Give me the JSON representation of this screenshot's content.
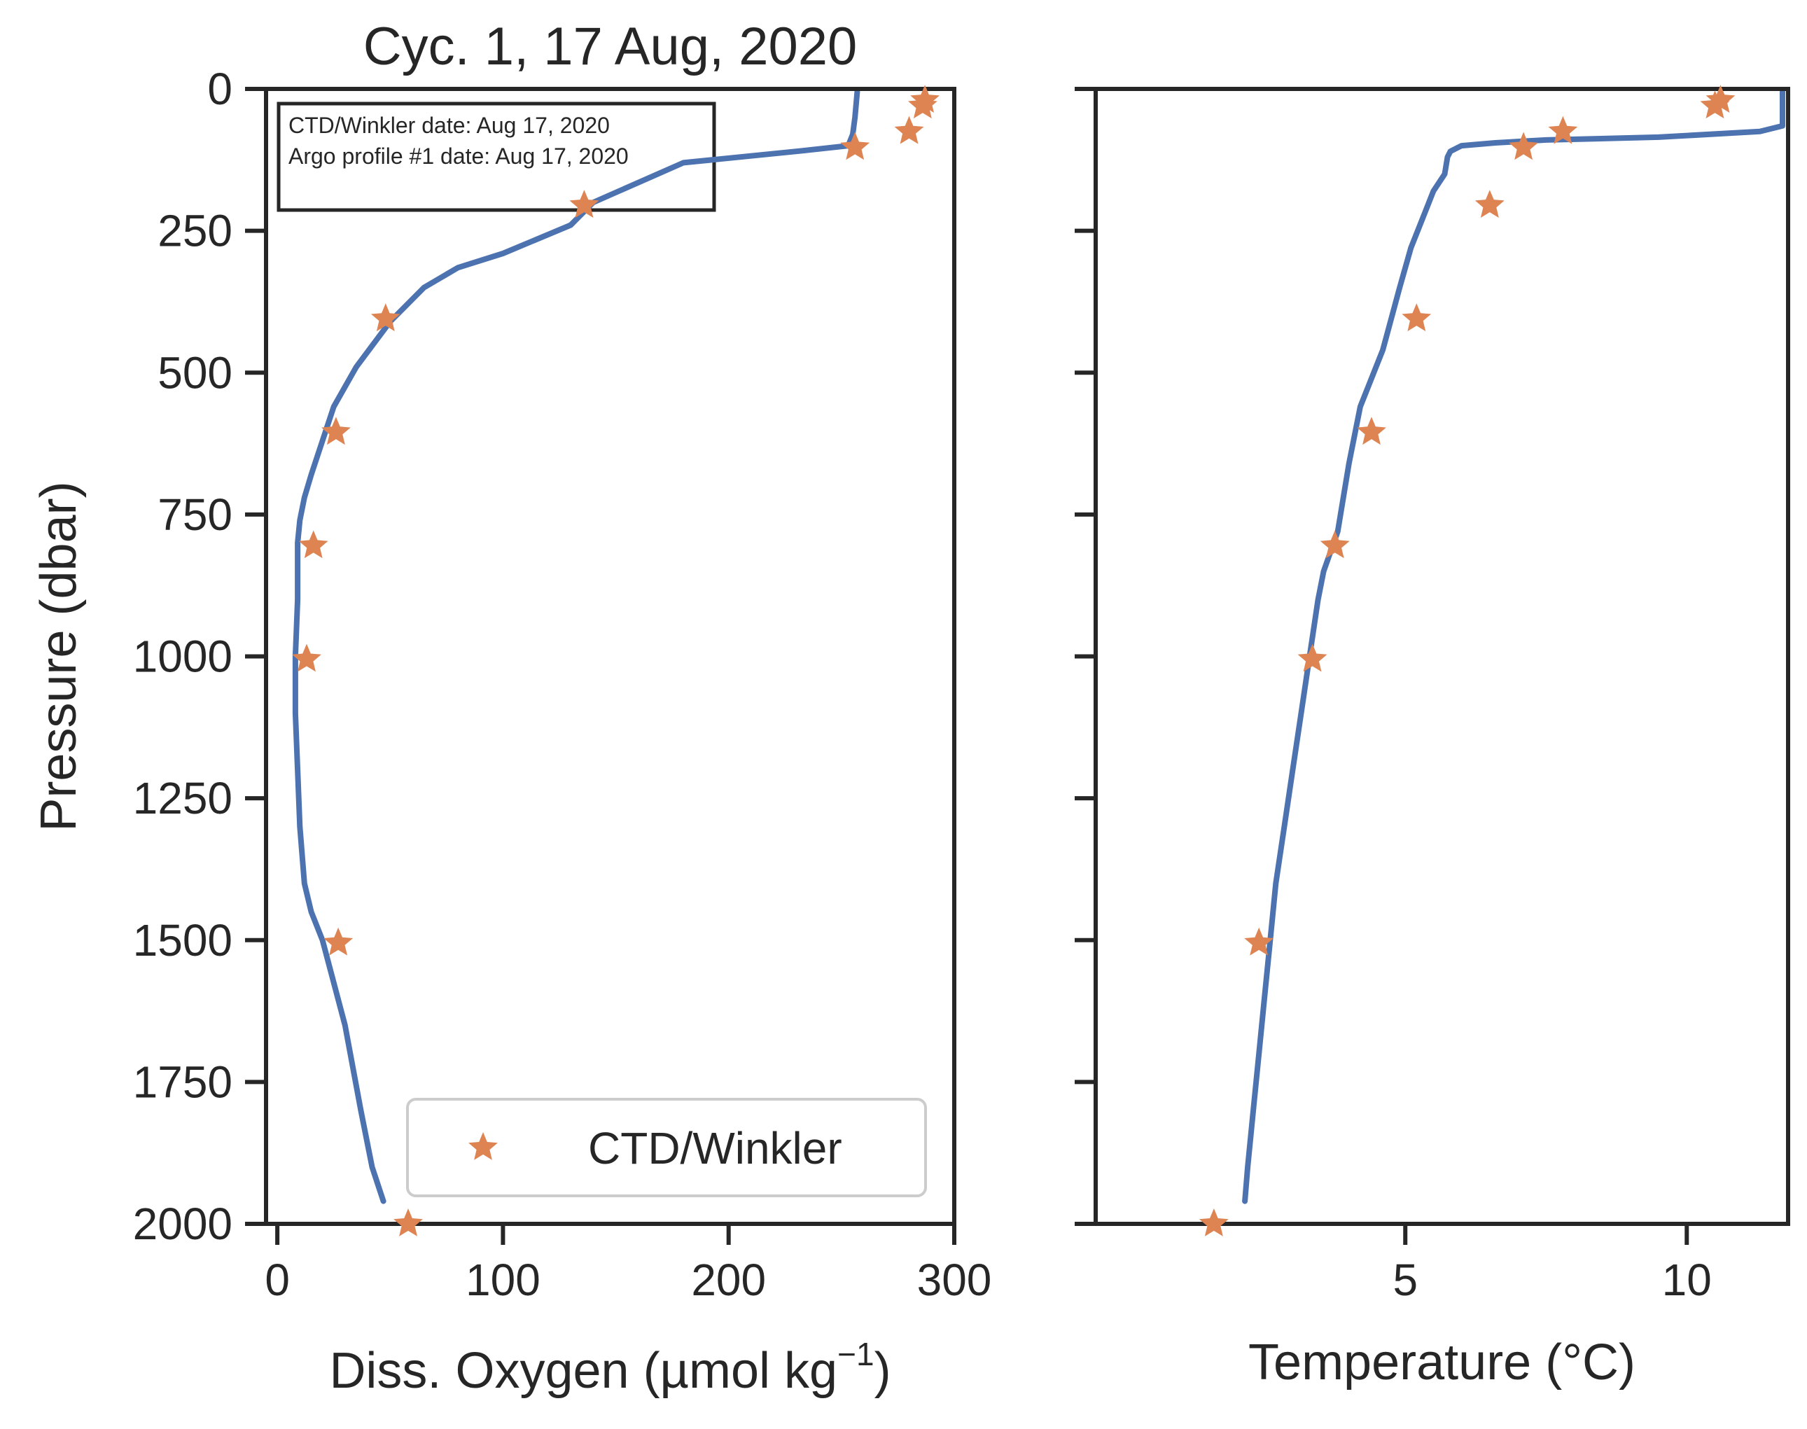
{
  "colors": {
    "profile_line": "#4c72b0",
    "winkler_marker": "#dd8452",
    "axes": "#262626"
  },
  "chart_data": [
    {
      "type": "line",
      "title": "Cyc. 1, 17 Aug, 2020",
      "xlabel": "Diss. Oxygen (µmol kg",
      "xlabel_sup": "−1",
      "xlabel_close": ")",
      "ylabel": "Pressure (dbar)",
      "xlim": [
        -5,
        300
      ],
      "ylim": [
        2000,
        0
      ],
      "y_inverted": true,
      "xticks": [
        0,
        100,
        200,
        300
      ],
      "xtick_labels": [
        "0",
        "100",
        "200",
        "300"
      ],
      "yticks": [
        0,
        250,
        500,
        750,
        1000,
        1250,
        1500,
        1750,
        2000
      ],
      "ytick_labels": [
        "0",
        "250",
        "500",
        "750",
        "1000",
        "1250",
        "1500",
        "1750",
        "2000"
      ],
      "annotation": [
        "CTD/Winkler date: Aug 17, 2020",
        "Argo profile #1 date: Aug 17, 2020"
      ],
      "legend": {
        "placement": "lower right",
        "entries": [
          "CTD/Winkler"
        ]
      },
      "series": [
        {
          "kind": "line",
          "x": [
            257,
            256,
            255,
            253,
            230,
            180,
            140,
            130,
            100,
            80,
            65,
            50,
            35,
            25,
            20,
            15,
            12,
            10,
            9,
            9,
            8,
            8,
            8,
            9,
            10,
            12,
            15,
            20,
            30,
            37,
            42,
            47
          ],
          "y": [
            5,
            50,
            80,
            100,
            110,
            130,
            200,
            240,
            290,
            315,
            350,
            410,
            490,
            560,
            620,
            680,
            720,
            760,
            800,
            900,
            1000,
            1050,
            1100,
            1200,
            1300,
            1400,
            1450,
            1500,
            1650,
            1800,
            1900,
            1960
          ]
        },
        {
          "kind": "marker",
          "name": "CTD/Winkler",
          "x": [
            287,
            286,
            280,
            256,
            136,
            48,
            26,
            16,
            13,
            27,
            58
          ],
          "y": [
            20,
            30,
            75,
            103,
            205,
            405,
            605,
            805,
            1005,
            1505,
            2000
          ]
        }
      ]
    },
    {
      "type": "line",
      "title": "",
      "xlabel": "Temperature (°C)",
      "ylabel": "",
      "xlim": [
        -0.5,
        11.8
      ],
      "ylim": [
        2000,
        0
      ],
      "y_inverted": true,
      "xticks": [
        5,
        10
      ],
      "xtick_labels": [
        "5",
        "10"
      ],
      "yticks": [
        0,
        250,
        500,
        750,
        1000,
        1250,
        1500,
        1750,
        2000
      ],
      "ytick_labels": [],
      "series": [
        {
          "kind": "line",
          "x": [
            11.7,
            11.7,
            11.3,
            9.5,
            7.5,
            6.6,
            6.0,
            5.8,
            5.75,
            5.7,
            5.5,
            5.3,
            5.1,
            4.9,
            4.6,
            4.2,
            4.0,
            3.8,
            3.55,
            3.45,
            3.3,
            3.15,
            3.0,
            2.85,
            2.7,
            2.6,
            2.5,
            2.4,
            2.3,
            2.2,
            2.15
          ],
          "y": [
            5,
            65,
            75,
            85,
            90,
            95,
            100,
            110,
            120,
            150,
            180,
            230,
            280,
            350,
            460,
            560,
            660,
            780,
            850,
            900,
            1000,
            1100,
            1200,
            1300,
            1400,
            1500,
            1600,
            1700,
            1800,
            1900,
            1960
          ]
        },
        {
          "kind": "marker",
          "name": "CTD/Winkler",
          "x": [
            10.6,
            10.5,
            7.8,
            7.1,
            6.5,
            5.2,
            4.4,
            3.75,
            3.35,
            2.4,
            1.6
          ],
          "y": [
            20,
            30,
            75,
            103,
            205,
            405,
            605,
            805,
            1005,
            1505,
            2000
          ]
        }
      ]
    }
  ]
}
